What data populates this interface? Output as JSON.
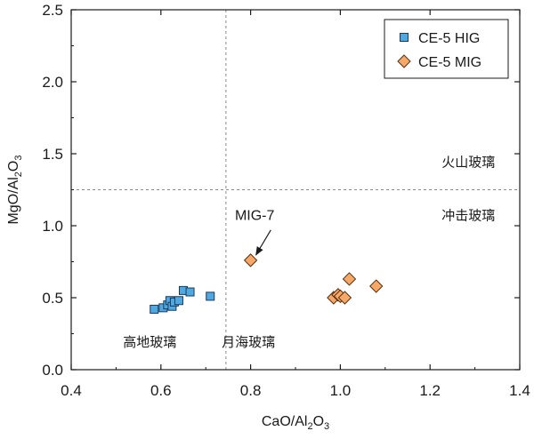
{
  "chart_data": {
    "type": "scatter",
    "xlabel_main": "CaO/Al",
    "xlabel_sub1": "2",
    "xlabel_mid": "O",
    "xlabel_sub2": "3",
    "ylabel_main": "MgO/Al",
    "ylabel_sub1": "2",
    "ylabel_mid": "O",
    "ylabel_sub2": "3",
    "xlim": [
      0.4,
      1.4
    ],
    "ylim": [
      0.0,
      2.5
    ],
    "x_ticks": [
      0.4,
      0.6,
      0.8,
      1.0,
      1.2,
      1.4
    ],
    "x_tick_labels": [
      "0.4",
      "0.6",
      "0.8",
      "1.0",
      "1.2",
      "1.4"
    ],
    "y_ticks": [
      0.0,
      0.5,
      1.0,
      1.5,
      2.0,
      2.5
    ],
    "y_tick_labels": [
      "0.0",
      "0.5",
      "1.0",
      "1.5",
      "2.0",
      "2.5"
    ],
    "reference_lines": {
      "vertical_x": 0.745,
      "horizontal_y": 1.25
    },
    "series": [
      {
        "name": "CE-5 HIG",
        "marker": "square",
        "color": "#4FA8E0",
        "edge": "#1a3a5c",
        "points": [
          [
            0.585,
            0.42
          ],
          [
            0.605,
            0.43
          ],
          [
            0.615,
            0.45
          ],
          [
            0.62,
            0.48
          ],
          [
            0.625,
            0.44
          ],
          [
            0.63,
            0.47
          ],
          [
            0.64,
            0.48
          ],
          [
            0.65,
            0.55
          ],
          [
            0.665,
            0.54
          ],
          [
            0.71,
            0.51
          ]
        ]
      },
      {
        "name": "CE-5 MIG",
        "marker": "diamond",
        "color": "#F5A867",
        "edge": "#5a3010",
        "points": [
          [
            0.8,
            0.76
          ],
          [
            0.985,
            0.5
          ],
          [
            0.995,
            0.52
          ],
          [
            1.0,
            0.51
          ],
          [
            1.01,
            0.5
          ],
          [
            1.02,
            0.63
          ],
          [
            1.08,
            0.58
          ]
        ]
      }
    ],
    "annotations": [
      {
        "text": "MIG-7",
        "arrow_to": [
          0.8,
          0.76
        ]
      }
    ],
    "region_labels": {
      "volcanic": "火山玻璃",
      "impact": "冲击玻璃",
      "highland": "高地玻璃",
      "mare": "月海玻璃"
    },
    "legend_position": "top-right"
  }
}
